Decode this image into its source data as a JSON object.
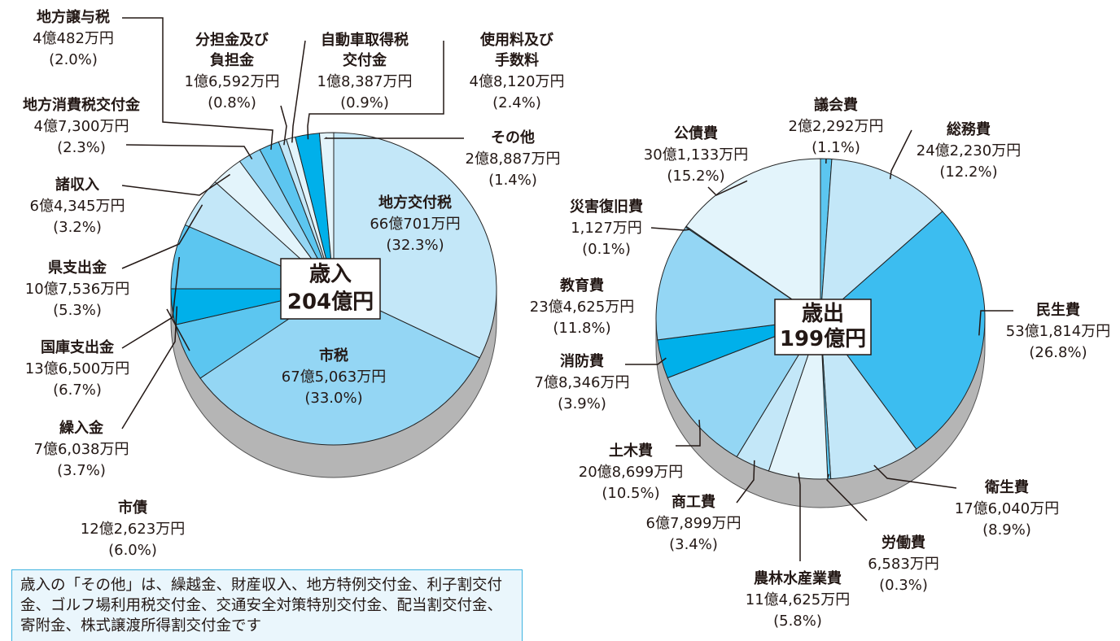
{
  "chart_data": [
    {
      "type": "pie",
      "center_title": "歳入",
      "center_total": "204億円",
      "categories": [
        "地方交付税",
        "市税",
        "市債",
        "繰入金",
        "国庫支出金",
        "県支出金",
        "諸収入",
        "地方消費税交付金",
        "地方譲与税",
        "分担金及び\n負担金",
        "自動車取得税\n交付金",
        "使用料及び\n手数料",
        "その他"
      ],
      "values": [
        32.3,
        33.0,
        6.0,
        3.7,
        6.7,
        5.3,
        3.2,
        2.3,
        2.0,
        0.8,
        0.9,
        2.4,
        1.4
      ],
      "value_labels": [
        "(32.3%)",
        "(33.0%)",
        "(6.0%)",
        "(3.7%)",
        "(6.7%)",
        "(5.3%)",
        "(3.2%)",
        "(2.3%)",
        "(2.0%)",
        "(0.8%)",
        "(0.9%)",
        "(2.4%)",
        "(1.4%)"
      ],
      "amount_labels": [
        "66億701万円",
        "67億5,063万円",
        "12億2,623万円",
        "7億6,038万円",
        "13億6,500万円",
        "10億7,536万円",
        "6億4,345万円",
        "4億7,300万円",
        "4億482万円",
        "1億6,592万円",
        "1億8,387万円",
        "4億8,120万円",
        "2億8,887万円"
      ],
      "colors": [
        "#c3e7f8",
        "#94d6f4",
        "#5cc6f0",
        "#00b0ea",
        "#5cc6f0",
        "#c3e7f8",
        "#e3f4fb",
        "#94d6f4",
        "#5cc6f0",
        "#c3e7f8",
        "#e3f4fb",
        "#00b0ea",
        "#e3f4fb"
      ]
    },
    {
      "type": "pie",
      "center_title": "歳出",
      "center_total": "199億円",
      "categories": [
        "議会費",
        "総務費",
        "民生費",
        "衛生費",
        "労働費",
        "農林水産業費",
        "商工費",
        "土木費",
        "消防費",
        "教育費",
        "災害復旧費",
        "公債費"
      ],
      "values": [
        1.1,
        12.2,
        26.8,
        8.9,
        0.3,
        5.8,
        3.4,
        10.5,
        3.9,
        11.8,
        0.1,
        15.2
      ],
      "value_labels": [
        "(1.1%)",
        "(12.2%)",
        "(26.8%)",
        "(8.9%)",
        "(0.3%)",
        "(5.8%)",
        "(3.4%)",
        "(10.5%)",
        "(3.9%)",
        "(11.8%)",
        "(0.1%)",
        "(15.2%)"
      ],
      "amount_labels": [
        "2億2,292万円",
        "24億2,230万円",
        "53億1,814万円",
        "17億6,040万円",
        "6,583万円",
        "11億4,625万円",
        "6億7,899万円",
        "20億8,699万円",
        "7億8,346万円",
        "23億4,625万円",
        "1,127万円",
        "30億1,133万円"
      ],
      "colors": [
        "#5cc6f0",
        "#c3e7f8",
        "#3cbdf0",
        "#c3e7f8",
        "#5cc6f0",
        "#e3f4fb",
        "#c3e7f8",
        "#94d6f4",
        "#00b0ea",
        "#94d6f4",
        "#5cc6f0",
        "#e3f4fb"
      ]
    }
  ],
  "note": "歳入の「その他」は、繰越金、財産収入、地方特例交付金、利子割交付金、ゴルフ場利用税交付金、交通安全対策特別交付金、配当割交付金、寄附金、株式譲渡所得割交付金です"
}
